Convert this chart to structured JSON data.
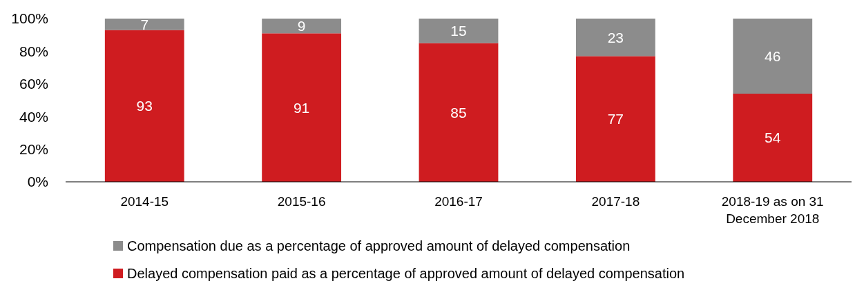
{
  "chart_data": {
    "type": "bar",
    "stacked": true,
    "categories": [
      "2014-15",
      "2015-16",
      "2016-17",
      "2017-18",
      "2018-19 as on 31 December 2018"
    ],
    "series": [
      {
        "name": "Delayed compensation paid as a percentage of approved amount of delayed compensation",
        "color": "#cf1c20",
        "values": [
          93,
          91,
          85,
          77,
          54
        ]
      },
      {
        "name": "Compensation due as a percentage of approved amount of delayed compensation",
        "color": "#8c8c8c",
        "values": [
          7,
          9,
          15,
          23,
          46
        ]
      }
    ],
    "ylim": [
      0,
      100
    ],
    "yticks": [
      {
        "value": 0,
        "label": "0%"
      },
      {
        "value": 20,
        "label": "20%"
      },
      {
        "value": 40,
        "label": "40%"
      },
      {
        "value": 60,
        "label": "60%"
      },
      {
        "value": 80,
        "label": "80%"
      },
      {
        "value": 100,
        "label": "100%"
      }
    ],
    "data_labels": true,
    "grid": false,
    "legend": "bottom"
  }
}
